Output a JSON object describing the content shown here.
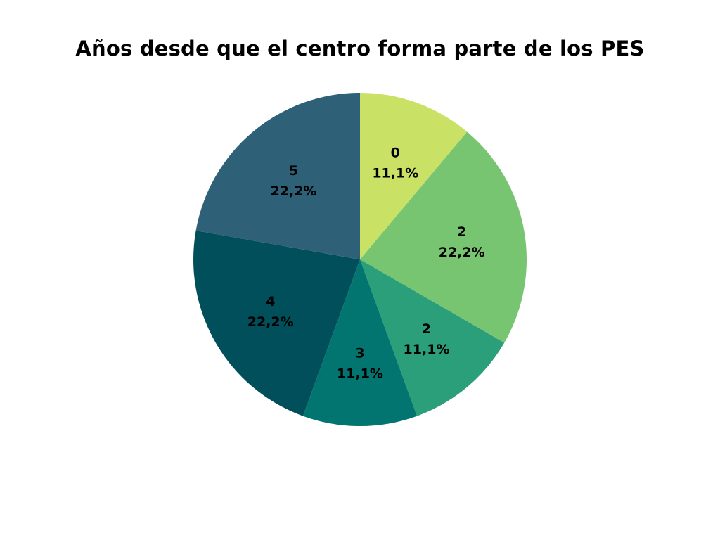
{
  "chart_data": {
    "type": "pie",
    "title": "Años desde que el centro forma parte de los PES",
    "start_angle_deg": 0,
    "direction": "clockwise",
    "slices": [
      {
        "label": "0",
        "percent_label": "11,1%",
        "value": 11.1,
        "color": "#c9e265"
      },
      {
        "label": "2",
        "percent_label": "22,2%",
        "value": 22.2,
        "color": "#78c571"
      },
      {
        "label": "2",
        "percent_label": "11,1%",
        "value": 11.1,
        "color": "#2b9e7a"
      },
      {
        "label": "3",
        "percent_label": "11,1%",
        "value": 11.1,
        "color": "#037570"
      },
      {
        "label": "4",
        "percent_label": "22,2%",
        "value": 22.2,
        "color": "#024f5c"
      },
      {
        "label": "5",
        "percent_label": "22,2%",
        "value": 22.2,
        "color": "#2e6078"
      }
    ]
  }
}
